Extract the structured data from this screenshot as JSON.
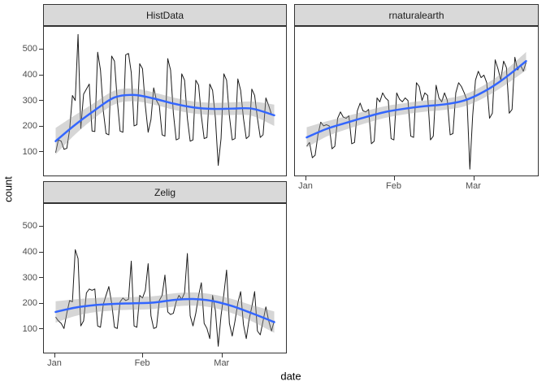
{
  "axes": {
    "x_label": "date",
    "y_label": "count",
    "y_ticks": [
      500,
      400,
      300,
      200,
      100
    ],
    "x_ticks": [
      {
        "label": "Jan",
        "day": 0
      },
      {
        "label": "Feb",
        "day": 31
      },
      {
        "label": "Mar",
        "day": 59
      }
    ]
  },
  "colors": {
    "smooth_line": "#3366FF",
    "data_line": "#1a1a1a",
    "ribbon": "#999999",
    "ribbon_opacity": "0.4",
    "strip_background": "#d9d9d9",
    "strip_text": "#1a1a1a",
    "panel_border": "#333333",
    "axis_text": "#4d4d4d"
  },
  "chart_data": [
    {
      "type": "line",
      "facet": "HistData",
      "x_unit": "days since Jan 1",
      "x_range_days": [
        0,
        78
      ],
      "ylim": [
        5,
        590
      ],
      "values": [
        95,
        145,
        140,
        108,
        112,
        185,
        320,
        300,
        560,
        190,
        325,
        345,
        365,
        180,
        178,
        490,
        420,
        260,
        170,
        165,
        475,
        455,
        300,
        180,
        175,
        480,
        485,
        410,
        200,
        205,
        445,
        425,
        280,
        175,
        225,
        350,
        300,
        280,
        165,
        160,
        465,
        420,
        250,
        145,
        150,
        405,
        380,
        230,
        140,
        145,
        380,
        360,
        240,
        150,
        155,
        365,
        340,
        230,
        45,
        150,
        405,
        380,
        240,
        145,
        150,
        385,
        340,
        230,
        150,
        160,
        345,
        320,
        230,
        155,
        165,
        310,
        280,
        245,
        240
      ],
      "smooth": {
        "knot_days": [
          0,
          7,
          14,
          21,
          28,
          35,
          42,
          49,
          56,
          63,
          70,
          78
        ],
        "values": [
          140,
          205,
          262,
          312,
          322,
          308,
          288,
          273,
          267,
          268,
          268,
          242
        ],
        "ribbon_halfwidth": [
          52,
          38,
          30,
          27,
          25,
          24,
          24,
          24,
          24,
          25,
          28,
          42
        ]
      }
    },
    {
      "type": "line",
      "facet": "rnaturalearth",
      "x_unit": "days since Jan 1",
      "x_range_days": [
        0,
        78
      ],
      "ylim": [
        5,
        590
      ],
      "values": [
        120,
        135,
        75,
        85,
        165,
        215,
        200,
        205,
        200,
        110,
        120,
        230,
        255,
        235,
        230,
        240,
        130,
        135,
        260,
        290,
        260,
        255,
        265,
        130,
        140,
        310,
        295,
        330,
        310,
        300,
        150,
        145,
        330,
        305,
        295,
        310,
        300,
        160,
        155,
        370,
        355,
        300,
        330,
        320,
        145,
        160,
        360,
        310,
        295,
        330,
        300,
        165,
        170,
        330,
        370,
        355,
        330,
        300,
        30,
        240,
        380,
        415,
        390,
        400,
        370,
        230,
        250,
        460,
        425,
        380,
        455,
        430,
        250,
        265,
        470,
        420,
        440,
        415,
        450
      ],
      "smooth": {
        "knot_days": [
          0,
          7,
          14,
          21,
          28,
          35,
          42,
          49,
          56,
          63,
          70,
          78
        ],
        "values": [
          155,
          188,
          212,
          235,
          255,
          268,
          278,
          285,
          300,
          335,
          385,
          455
        ],
        "ribbon_halfwidth": [
          40,
          30,
          26,
          24,
          23,
          22,
          22,
          22,
          23,
          25,
          28,
          36
        ]
      }
    },
    {
      "type": "line",
      "facet": "Zelig",
      "x_unit": "days since Jan 1",
      "x_range_days": [
        0,
        78
      ],
      "ylim": [
        5,
        590
      ],
      "values": [
        145,
        130,
        120,
        100,
        160,
        210,
        205,
        410,
        375,
        110,
        130,
        240,
        255,
        250,
        255,
        110,
        105,
        195,
        230,
        265,
        200,
        105,
        100,
        205,
        220,
        210,
        215,
        365,
        110,
        105,
        230,
        220,
        250,
        355,
        150,
        100,
        105,
        210,
        230,
        310,
        165,
        155,
        160,
        205,
        230,
        215,
        240,
        395,
        150,
        110,
        160,
        230,
        280,
        120,
        100,
        60,
        230,
        170,
        30,
        150,
        235,
        330,
        120,
        70,
        130,
        200,
        245,
        115,
        60,
        135,
        185,
        245,
        90,
        75,
        130,
        185,
        130,
        90,
        130
      ],
      "smooth": {
        "knot_days": [
          0,
          7,
          14,
          21,
          28,
          35,
          42,
          49,
          56,
          63,
          70,
          78
        ],
        "values": [
          165,
          182,
          192,
          197,
          199,
          202,
          212,
          216,
          208,
          188,
          160,
          125
        ],
        "ribbon_halfwidth": [
          42,
          33,
          28,
          26,
          25,
          25,
          26,
          26,
          26,
          28,
          32,
          42
        ]
      }
    }
  ]
}
